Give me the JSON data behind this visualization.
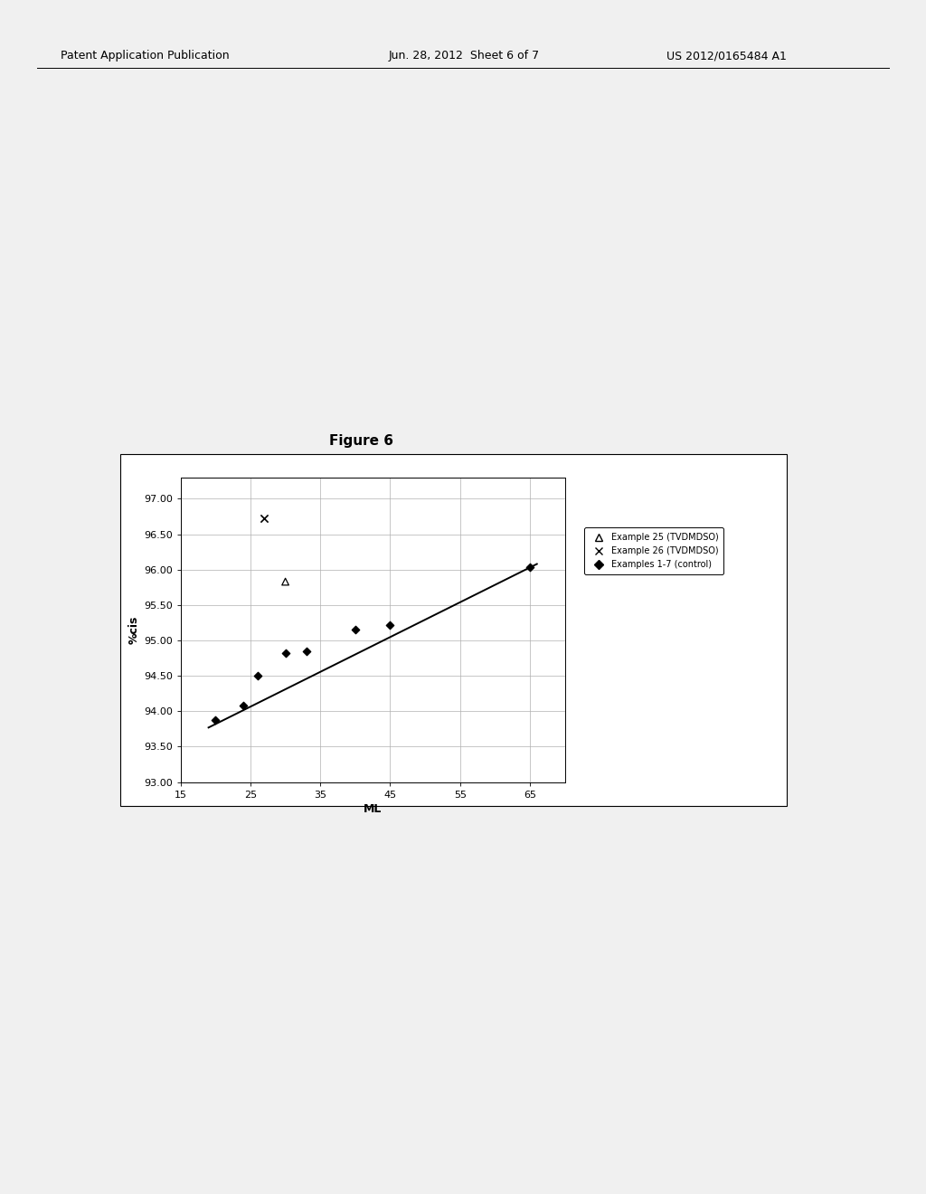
{
  "title": "Figure 6",
  "xlabel": "ML",
  "ylabel": "%cis",
  "xlim": [
    15,
    70
  ],
  "ylim": [
    93.0,
    97.3
  ],
  "xticks": [
    15,
    25,
    35,
    45,
    55,
    65
  ],
  "yticks": [
    93.0,
    93.5,
    94.0,
    94.5,
    95.0,
    95.5,
    96.0,
    96.5,
    97.0
  ],
  "control_x": [
    20,
    24,
    26,
    30,
    33,
    40,
    45,
    65
  ],
  "control_y": [
    93.87,
    94.08,
    94.5,
    94.82,
    94.85,
    95.15,
    95.22,
    96.03
  ],
  "ex25_x": [
    30
  ],
  "ex25_y": [
    95.83
  ],
  "ex26_x": [
    27
  ],
  "ex26_y": [
    96.73
  ],
  "trendline_x": [
    19,
    66
  ],
  "trendline_y": [
    93.77,
    96.08
  ],
  "legend_labels": [
    "Example 25 (TVDMDSO)",
    "Example 26 (TVDMDSO)",
    "Examples 1-7 (control)"
  ],
  "background_color": "#f0f0f0",
  "plot_bg_color": "#ffffff",
  "grid_color": "#b0b0b0",
  "line_color": "#000000",
  "marker_color": "#000000",
  "title_fontsize": 11,
  "label_fontsize": 9,
  "tick_fontsize": 8,
  "header_left": "Patent Application Publication",
  "header_mid": "Jun. 28, 2012  Sheet 6 of 7",
  "header_right": "US 2012/0165484 A1"
}
